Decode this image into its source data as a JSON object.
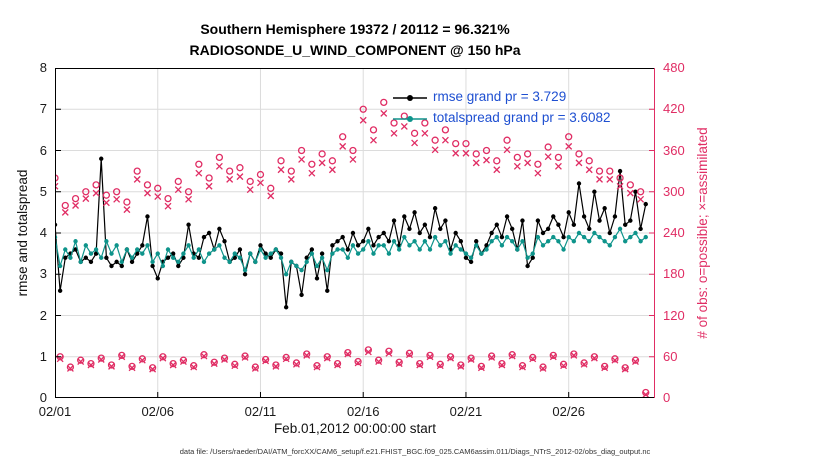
{
  "figure": {
    "title_line1": "Southern Hemisphere 19372 / 20112 = 96.321%",
    "title_line2": "RADIOSONDE_U_WIND_COMPONENT @ 150 hPa",
    "ylabel_left": "rmse and totalspread",
    "ylabel_right": "# of obs: o=possible; ×=assimilated",
    "xlabel": "Feb.01,2012 00:00:00 start",
    "caption": "data file: /Users/raeder/DAI/ATM_forcXX/CAM6_setup/f.e21.FHIST_BGC.f09_025.CAM6assim.011/Diags_NTrS_2012-02/obs_diag_output.nc",
    "legend": [
      {
        "label": "rmse grand pr = 3.729"
      },
      {
        "label": "totalspread grand pr = 3.6082"
      }
    ]
  },
  "chart_data": {
    "type": "line",
    "title": "Southern Hemisphere 19372 / 20112 = 96.321% | RADIOSONDE_U_WIND_COMPONENT @ 150 hPa",
    "x0": "2012-02-01 00:00:00",
    "x_step_days": 0.25,
    "n_points": 116,
    "xlim": [
      0,
      29.2
    ],
    "ylim": [
      0,
      8
    ],
    "y2lim": [
      0,
      480
    ],
    "yticks": [
      0,
      1,
      2,
      3,
      4,
      5,
      6,
      7,
      8
    ],
    "y2ticks": [
      0,
      60,
      120,
      180,
      240,
      300,
      360,
      420,
      480
    ],
    "xticks": [
      {
        "day": 0,
        "label": "02/01"
      },
      {
        "day": 5,
        "label": "02/06"
      },
      {
        "day": 10,
        "label": "02/11"
      },
      {
        "day": 15,
        "label": "02/16"
      },
      {
        "day": 20,
        "label": "02/21"
      },
      {
        "day": 25,
        "label": "02/26"
      }
    ],
    "grid": true,
    "legend_position": "top-center-inside",
    "stats": {
      "n_assimilated_total": 19372,
      "n_possible_total": 20112,
      "pct_assimilated": 96.321,
      "rmse_grand": 3.729,
      "totalspread_grand": 3.6082
    },
    "colors": {
      "grid": "#dcdcdc",
      "obs": "#e02d64",
      "legend_text": "#1e4fd1",
      "axis_text": "#1a1a1a"
    },
    "series": [
      {
        "name": "rmse",
        "axis": "left",
        "color": "#000000",
        "marker": "filled-circle",
        "values": [
          4.2,
          2.6,
          3.4,
          3.5,
          3.6,
          3.3,
          3.4,
          3.3,
          3.5,
          5.8,
          3.4,
          3.2,
          3.3,
          3.2,
          3.6,
          3.3,
          3.5,
          3.7,
          4.4,
          3.2,
          2.9,
          3.3,
          3.4,
          3.5,
          3.2,
          3.4,
          4.2,
          3.5,
          3.4,
          3.9,
          4.0,
          3.6,
          4.1,
          3.8,
          3.3,
          3.4,
          3.6,
          3.0,
          3.5,
          3.3,
          3.7,
          3.5,
          3.4,
          3.6,
          3.5,
          2.2,
          3.3,
          3.2,
          2.5,
          3.4,
          3.6,
          2.9,
          3.5,
          2.6,
          3.7,
          3.8,
          3.9,
          3.6,
          4.0,
          3.7,
          3.8,
          4.1,
          3.7,
          3.9,
          4.0,
          3.8,
          4.3,
          3.7,
          4.4,
          4.1,
          4.5,
          4.0,
          4.2,
          3.9,
          4.6,
          4.1,
          4.3,
          3.6,
          4.0,
          3.8,
          3.4,
          3.3,
          3.8,
          3.5,
          3.7,
          4.0,
          4.2,
          3.9,
          4.4,
          4.1,
          3.6,
          4.3,
          3.2,
          3.4,
          4.3,
          4.0,
          4.1,
          4.4,
          4.2,
          3.9,
          4.5,
          4.2,
          5.2,
          4.4,
          4.1,
          5.0,
          4.3,
          4.6,
          4.0,
          4.4,
          5.5,
          4.2,
          4.3,
          5.0,
          4.1,
          4.7
        ]
      },
      {
        "name": "totalspread",
        "axis": "left",
        "color": "#0e948b",
        "marker": "filled-circle",
        "values": [
          3.9,
          3.2,
          3.6,
          3.4,
          3.8,
          3.3,
          3.7,
          3.5,
          3.6,
          3.4,
          3.8,
          3.5,
          3.7,
          3.3,
          3.6,
          3.4,
          3.6,
          3.5,
          3.7,
          3.3,
          3.5,
          3.2,
          3.6,
          3.4,
          3.3,
          3.5,
          3.7,
          3.4,
          3.6,
          3.3,
          3.5,
          3.6,
          3.7,
          3.4,
          3.3,
          3.5,
          3.4,
          3.1,
          3.5,
          3.3,
          3.6,
          3.4,
          3.5,
          3.6,
          3.4,
          3.0,
          3.3,
          3.2,
          3.1,
          3.3,
          3.5,
          3.2,
          3.4,
          3.1,
          3.5,
          3.6,
          3.6,
          3.4,
          3.7,
          3.5,
          3.6,
          3.8,
          3.5,
          3.7,
          3.7,
          3.5,
          3.8,
          3.6,
          3.9,
          3.7,
          3.8,
          3.6,
          3.8,
          3.6,
          3.9,
          3.7,
          3.8,
          3.5,
          3.7,
          3.6,
          3.5,
          3.4,
          3.7,
          3.5,
          3.6,
          3.8,
          3.9,
          3.7,
          3.9,
          3.8,
          3.6,
          3.8,
          3.4,
          3.5,
          3.9,
          3.7,
          3.8,
          3.9,
          3.8,
          3.6,
          3.9,
          3.8,
          4.0,
          3.9,
          3.8,
          4.0,
          3.9,
          3.8,
          3.7,
          3.9,
          4.1,
          3.8,
          3.9,
          4.0,
          3.8,
          3.9
        ]
      },
      {
        "name": "N_possible",
        "axis": "right",
        "color": "#e02d64",
        "marker": "open-circle",
        "values": [
          320,
          60,
          280,
          45,
          290,
          55,
          300,
          50,
          310,
          58,
          295,
          48,
          300,
          62,
          285,
          46,
          330,
          57,
          310,
          44,
          305,
          60,
          290,
          50,
          315,
          55,
          300,
          47,
          340,
          63,
          320,
          52,
          350,
          58,
          330,
          49,
          335,
          61,
          315,
          45,
          325,
          56,
          305,
          48,
          345,
          59,
          330,
          51,
          360,
          64,
          340,
          47,
          355,
          60,
          345,
          50,
          380,
          66,
          360,
          53,
          420,
          70,
          390,
          55,
          430,
          68,
          400,
          52,
          410,
          65,
          385,
          50,
          400,
          62,
          375,
          49,
          390,
          60,
          370,
          48,
          370,
          58,
          355,
          46,
          360,
          61,
          345,
          50,
          375,
          63,
          350,
          47,
          355,
          59,
          340,
          45,
          365,
          62,
          350,
          49,
          380,
          64,
          355,
          51,
          345,
          60,
          330,
          46,
          330,
          57,
          320,
          44,
          310,
          55,
          300,
          8
        ]
      },
      {
        "name": "N_assimilated",
        "axis": "right",
        "color": "#e02d64",
        "marker": "x",
        "values": [
          308,
          57,
          270,
          43,
          280,
          53,
          290,
          48,
          298,
          56,
          284,
          46,
          289,
          60,
          274,
          44,
          318,
          55,
          298,
          42,
          293,
          58,
          279,
          48,
          303,
          53,
          289,
          45,
          327,
          61,
          308,
          50,
          337,
          56,
          318,
          47,
          322,
          59,
          303,
          43,
          313,
          54,
          294,
          46,
          332,
          57,
          318,
          49,
          347,
          62,
          327,
          45,
          342,
          58,
          332,
          48,
          366,
          64,
          347,
          51,
          404,
          67,
          375,
          53,
          414,
          65,
          385,
          50,
          395,
          63,
          371,
          48,
          385,
          60,
          361,
          47,
          375,
          58,
          356,
          46,
          356,
          56,
          342,
          44,
          346,
          59,
          332,
          48,
          361,
          61,
          337,
          45,
          342,
          57,
          327,
          43,
          351,
          60,
          337,
          47,
          366,
          62,
          342,
          49,
          332,
          58,
          318,
          44,
          318,
          55,
          308,
          42,
          298,
          53,
          289,
          5
        ]
      }
    ]
  }
}
